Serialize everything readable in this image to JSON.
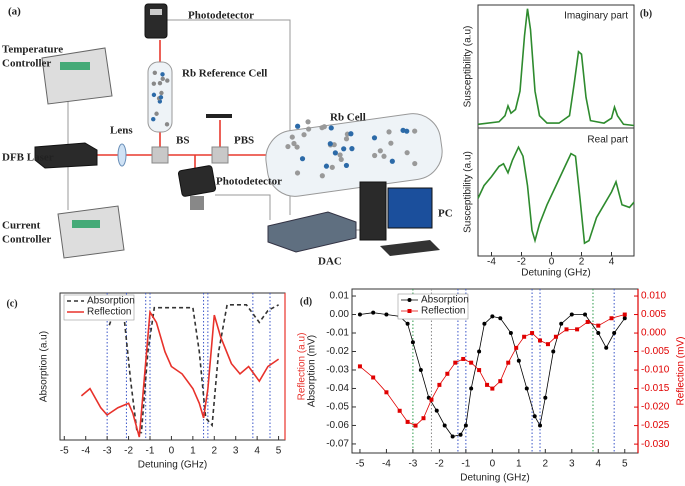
{
  "diagram": {
    "panel_label": "(a)",
    "photodetector_top": "Photodetector",
    "temperature_controller": [
      "Temperature",
      "Controller"
    ],
    "rb_reference_cell": "Rb Reference Cell",
    "dfb_laser": "DFB Laser",
    "lens": "Lens",
    "bs": "BS",
    "pbs": "PBS",
    "rb_cell": "Rb Cell",
    "photodetector_bottom": "Photodetector",
    "current_controller": [
      "Current",
      "Controller"
    ],
    "dac": "DAC",
    "pc": "PC"
  },
  "chart_data": [
    {
      "type": "line",
      "panel_label": "(b)",
      "annotation": "Imaginary part",
      "ylabel": "Susceptibility (a.u)",
      "xlim": [
        -4.9,
        5.5
      ],
      "ylim": [
        0,
        1
      ],
      "series": [
        {
          "color": "#2e8b2e",
          "x": [
            -4.9,
            -3.5,
            -3.1,
            -2.9,
            -2.7,
            -2.4,
            -2.1,
            -1.8,
            -1.6,
            -1.4,
            -1.1,
            -0.8,
            -0.3,
            0.5,
            1.2,
            1.5,
            1.8,
            2.0,
            2.3,
            2.6,
            3.5,
            4.0,
            4.2,
            4.4,
            4.8,
            5.5
          ],
          "values": [
            0.03,
            0.05,
            0.1,
            0.18,
            0.12,
            0.15,
            0.3,
            0.75,
            0.97,
            0.8,
            0.3,
            0.1,
            0.04,
            0.04,
            0.1,
            0.35,
            0.62,
            0.6,
            0.25,
            0.06,
            0.04,
            0.08,
            0.17,
            0.1,
            0.03,
            0.02
          ]
        }
      ]
    },
    {
      "type": "line",
      "annotation": "Real part",
      "ylabel": "Susceptibility (a.u)",
      "xlabel": "Detuning (GHz)",
      "xlim": [
        -4.9,
        5.5
      ],
      "xticks": [
        -4,
        -2,
        0,
        2,
        4
      ],
      "ylim": [
        0,
        1
      ],
      "series": [
        {
          "color": "#2e8b2e",
          "x": [
            -4.9,
            -4.5,
            -4.0,
            -3.5,
            -3.2,
            -2.9,
            -2.6,
            -2.2,
            -1.9,
            -1.6,
            -1.3,
            -1.1,
            -0.8,
            -0.3,
            0.3,
            0.9,
            1.3,
            1.6,
            1.9,
            2.2,
            2.5,
            3.0,
            3.5,
            4.0,
            4.3,
            4.7,
            5.2,
            5.5
          ],
          "values": [
            0.45,
            0.55,
            0.62,
            0.7,
            0.72,
            0.65,
            0.75,
            0.85,
            0.78,
            0.55,
            0.2,
            0.12,
            0.25,
            0.4,
            0.55,
            0.7,
            0.8,
            0.78,
            0.45,
            0.1,
            0.12,
            0.3,
            0.4,
            0.5,
            0.58,
            0.4,
            0.38,
            0.42
          ]
        }
      ]
    },
    {
      "type": "line",
      "panel_label": "(c)",
      "xlabel": "Detuning (GHz)",
      "ylabel": "Absorption (a.u)",
      "y2label": "Reflection (a.u)",
      "xlim": [
        -5.2,
        5.3
      ],
      "xticks": [
        -5,
        -4,
        -3,
        -2,
        -1,
        0,
        1,
        2,
        3,
        4,
        5
      ],
      "ylim": [
        0,
        1
      ],
      "y2lim": [
        0,
        1
      ],
      "legend": "upper left",
      "vlines": [
        -3.0,
        -2.1,
        -1.2,
        -1.0,
        1.5,
        1.7,
        3.8,
        4.6
      ],
      "vline_colors": [
        "#3a55c8",
        "#3a55c8",
        "#3a55c8",
        "#3a55c8",
        "#3a55c8",
        "#3a55c8",
        "#3a55c8",
        "#3a55c8"
      ],
      "series": [
        {
          "name": "Absorption",
          "color": "#333333",
          "dash": true,
          "x": [
            -2.9,
            -2.5,
            -2.2,
            -1.9,
            -1.6,
            -1.4,
            -1.1,
            -0.8,
            0,
            1.0,
            1.3,
            1.6,
            1.9,
            2.2,
            2.6,
            3.5,
            4.1,
            4.5,
            5.0
          ],
          "values": [
            0.78,
            0.95,
            0.82,
            0.4,
            0.05,
            0.05,
            0.6,
            0.9,
            0.9,
            0.9,
            0.6,
            0.15,
            0.1,
            0.6,
            0.92,
            0.92,
            0.8,
            0.88,
            0.92
          ]
        },
        {
          "name": "Reflection",
          "color": "#e8322b",
          "axis": "y2",
          "x": [
            -4.2,
            -3.8,
            -3.3,
            -3.0,
            -2.5,
            -2.0,
            -1.8,
            -1.5,
            -1.0,
            -0.7,
            -0.3,
            0,
            0.5,
            1.0,
            1.3,
            1.5,
            1.7,
            2.0,
            2.3,
            2.8,
            3.2,
            3.6,
            4.1,
            4.5,
            5.0
          ],
          "values": [
            0.3,
            0.35,
            0.22,
            0.17,
            0.22,
            0.25,
            0.18,
            0.02,
            0.87,
            0.8,
            0.6,
            0.5,
            0.45,
            0.35,
            0.25,
            0.15,
            0.35,
            0.85,
            0.7,
            0.52,
            0.45,
            0.5,
            0.4,
            0.5,
            0.55
          ]
        }
      ]
    },
    {
      "type": "line",
      "panel_label": "(d)",
      "xlabel": "Detuning (GHz)",
      "ylabel": "Absorption (mV)",
      "y2label": "Reflection (mV)",
      "xlim": [
        -5.3,
        5.5
      ],
      "xticks": [
        -5,
        -4,
        -3,
        -2,
        -1,
        0,
        1,
        2,
        3,
        4,
        5
      ],
      "ylim": [
        -0.0749,
        0.0138
      ],
      "yticks": [
        0.01,
        {
          "value": 0,
          "label": "0.00"
        },
        -0.01,
        -0.02,
        -0.03,
        -0.04,
        -0.05,
        -0.06,
        -0.07
      ],
      "y2lim": [
        -0.0324,
        0.0119
      ],
      "y2ticks": [
        {
          "value": 0.01,
          "label": "0.010"
        },
        0.005,
        {
          "value": 0,
          "label": "0.000"
        },
        -0.005,
        {
          "value": -0.01,
          "label": "-0.010"
        },
        -0.015,
        {
          "value": -0.02,
          "label": "-0.020"
        },
        -0.025,
        {
          "value": -0.03,
          "label": "-0.030"
        }
      ],
      "legend": "upper left",
      "vlines": [
        -3.0,
        -2.3,
        -1.3,
        -1.0,
        1.5,
        1.8,
        3.8,
        4.6
      ],
      "vline_colors": [
        "#2e9b4a",
        "#888888",
        "#3a55c8",
        "#3a55c8",
        "#3a55c8",
        "#3a55c8",
        "#2e9b4a",
        "#3a55c8"
      ],
      "series": [
        {
          "name": "Absorption",
          "color": "#000000",
          "marker": "circle",
          "x": [
            -5,
            -4.5,
            -4,
            -3.5,
            -3.2,
            -3,
            -2.7,
            -2.4,
            -2.1,
            -1.8,
            -1.5,
            -1.2,
            -1.0,
            -0.8,
            -0.5,
            -0.3,
            0,
            0.3,
            0.7,
            1.0,
            1.3,
            1.6,
            1.8,
            2.0,
            2.3,
            2.6,
            3,
            3.5,
            4.0,
            4.3,
            4.6,
            5
          ],
          "values": [
            0.0,
            0.001,
            0.0,
            -0.001,
            -0.005,
            -0.015,
            -0.03,
            -0.045,
            -0.052,
            -0.06,
            -0.066,
            -0.065,
            -0.06,
            -0.04,
            -0.02,
            -0.005,
            -0.001,
            -0.002,
            -0.01,
            -0.025,
            -0.04,
            -0.055,
            -0.06,
            -0.045,
            -0.02,
            -0.005,
            0.0,
            0.0,
            -0.01,
            -0.018,
            -0.01,
            -0.002
          ]
        },
        {
          "name": "Reflection",
          "color": "#e00000",
          "marker": "square",
          "axis": "y2",
          "x": [
            -5,
            -4.5,
            -4,
            -3.5,
            -3.2,
            -2.9,
            -2.6,
            -2.3,
            -2.0,
            -1.7,
            -1.4,
            -1.1,
            -0.8,
            -0.5,
            -0.2,
            0,
            0.3,
            0.6,
            0.9,
            1.2,
            1.5,
            1.8,
            2.1,
            2.4,
            2.8,
            3.2,
            3.6,
            4,
            4.5,
            5
          ],
          "values": [
            -0.009,
            -0.012,
            -0.016,
            -0.021,
            -0.024,
            -0.025,
            -0.023,
            -0.018,
            -0.014,
            -0.011,
            -0.008,
            -0.007,
            -0.008,
            -0.01,
            -0.014,
            -0.015,
            -0.013,
            -0.008,
            -0.004,
            -0.001,
            0.0,
            -0.002,
            -0.003,
            -0.001,
            0.001,
            0.001,
            0.003,
            0.002,
            0.004,
            0.005
          ]
        }
      ]
    }
  ]
}
